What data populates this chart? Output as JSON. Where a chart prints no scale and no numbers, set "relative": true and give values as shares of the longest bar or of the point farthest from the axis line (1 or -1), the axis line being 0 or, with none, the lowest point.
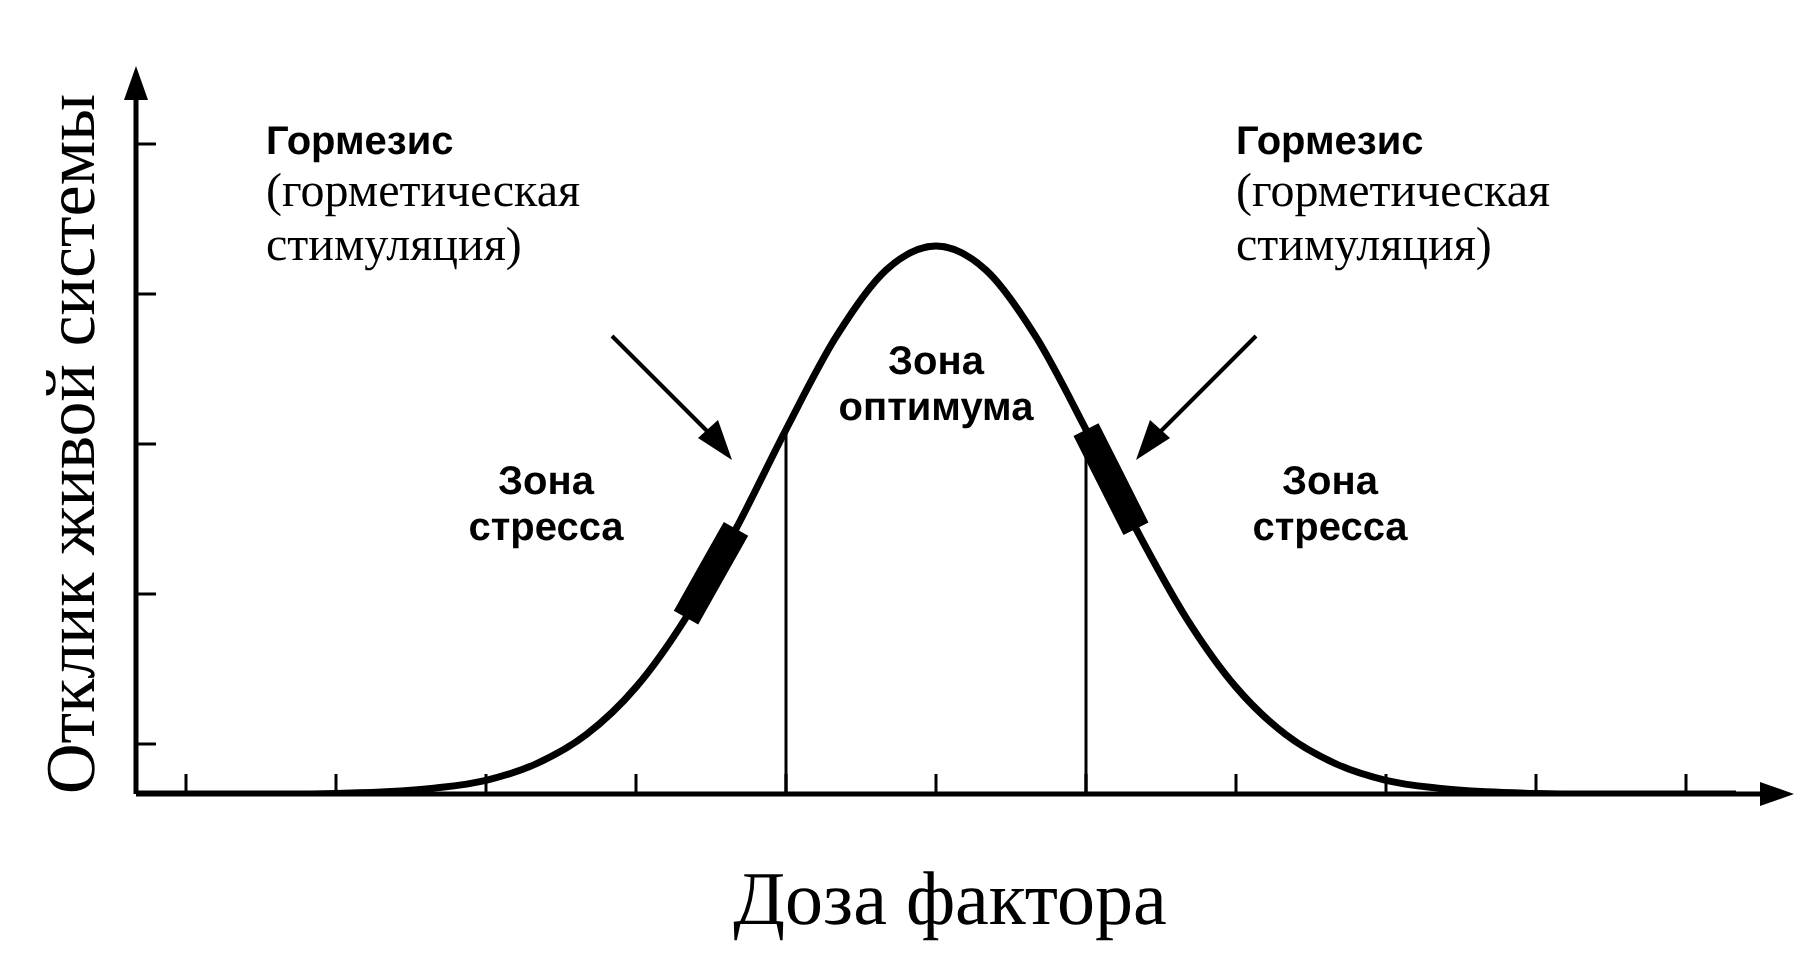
{
  "chart_data": {
    "type": "line",
    "relative": true,
    "xlabel": "Доза фактора",
    "ylabel": "Отклик живой системы",
    "legend": false,
    "categories": [
      null,
      null,
      null,
      null,
      null,
      null,
      null,
      null,
      null,
      null,
      null,
      null,
      null,
      null,
      null,
      null,
      null,
      null,
      null,
      null,
      null,
      null,
      null,
      null,
      null,
      null,
      null,
      null,
      null,
      null,
      null,
      null,
      null
    ],
    "series": [
      {
        "color": "#000000",
        "values": [
          0,
          0,
          0,
          0,
          0.001,
          0.004,
          0.011,
          0.025,
          0.055,
          0.108,
          0.195,
          0.322,
          0.484,
          0.665,
          0.834,
          0.956,
          1,
          0.956,
          0.834,
          0.665,
          0.484,
          0.322,
          0.195,
          0.108,
          0.055,
          0.025,
          0.011,
          0.004,
          0.001,
          0,
          0,
          0,
          0
        ]
      },
      {
        "color": "#000000",
        "values": [
          null,
          null,
          null,
          null,
          null,
          null,
          null,
          null,
          null,
          null,
          null,
          0.322,
          0.484,
          null,
          null,
          null,
          null,
          null,
          null,
          0.665,
          0.484,
          null,
          null,
          null,
          null,
          null,
          null,
          null,
          null,
          null,
          null,
          null,
          null
        ]
      }
    ],
    "annotations": [
      "Гормезис\n(горметическая\nстимуляция)",
      "Гормезис\n(горметическая\nстимуляция)",
      "Зона\nстресса",
      "Зона\nоптимума",
      "Зона\nстресса"
    ]
  }
}
